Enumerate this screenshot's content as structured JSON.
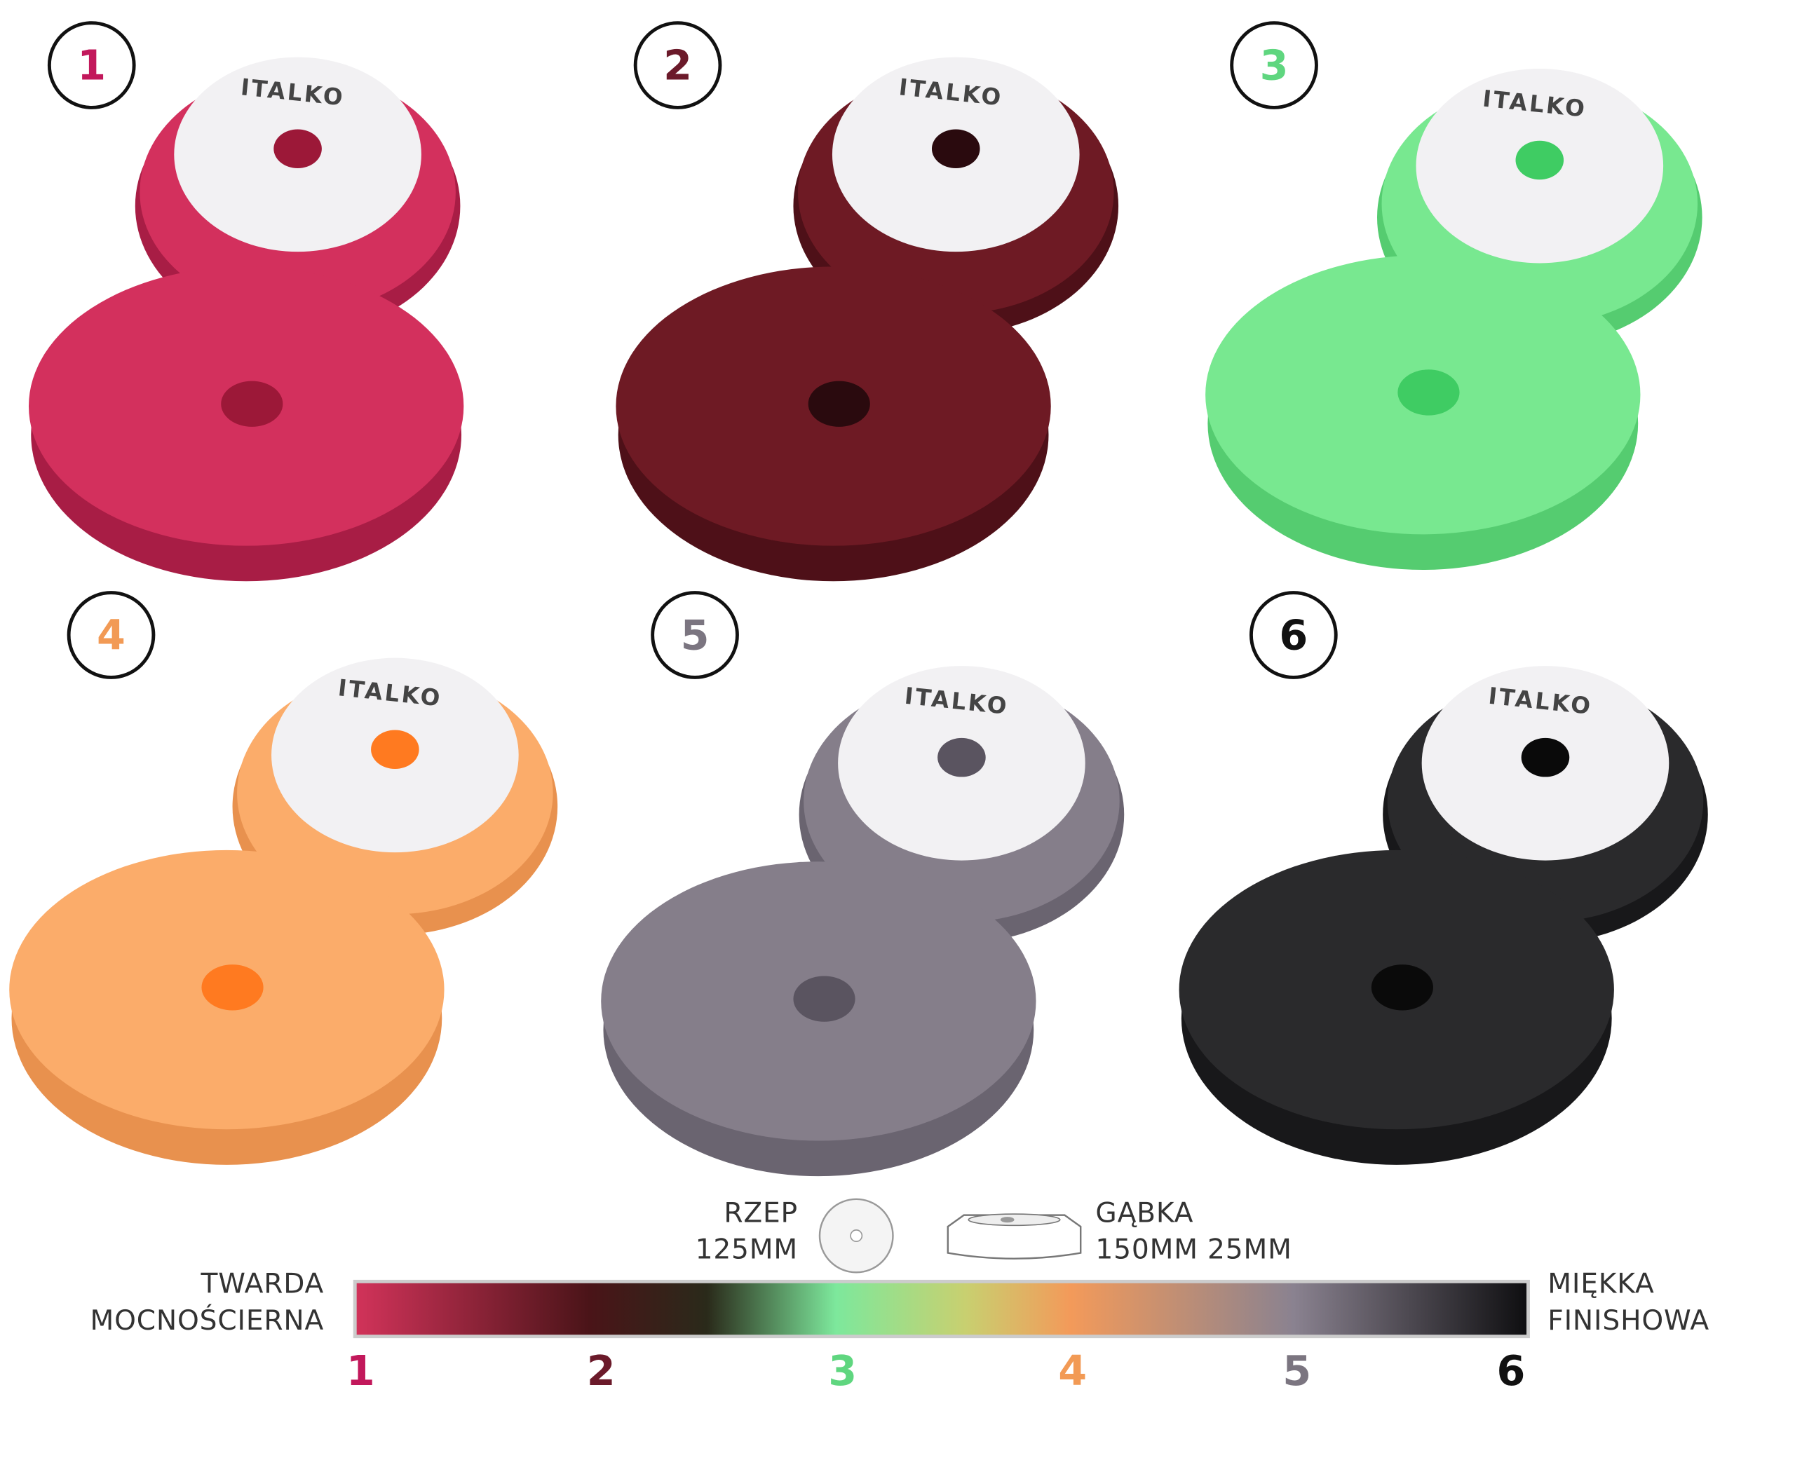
{
  "pads": [
    {
      "number": "1",
      "brand": "ITALKO"
    },
    {
      "number": "2",
      "brand": "ITALKO"
    },
    {
      "number": "3",
      "brand": "ITALKO"
    },
    {
      "number": "4",
      "brand": "ITALKO"
    },
    {
      "number": "5",
      "brand": "ITALKO"
    },
    {
      "number": "6",
      "brand": "ITALKO"
    }
  ],
  "legend": {
    "velcro": {
      "label": "RZEP",
      "size": "125MM"
    },
    "sponge": {
      "label": "GĄBKA",
      "size": "150MM 25MM"
    },
    "hard": [
      "TWARDA",
      "MOCNOŚCIERNA"
    ],
    "soft": [
      "MIĘKKA",
      "FINISHOWA"
    ],
    "scale": [
      "1",
      "2",
      "3",
      "4",
      "5",
      "6"
    ]
  }
}
